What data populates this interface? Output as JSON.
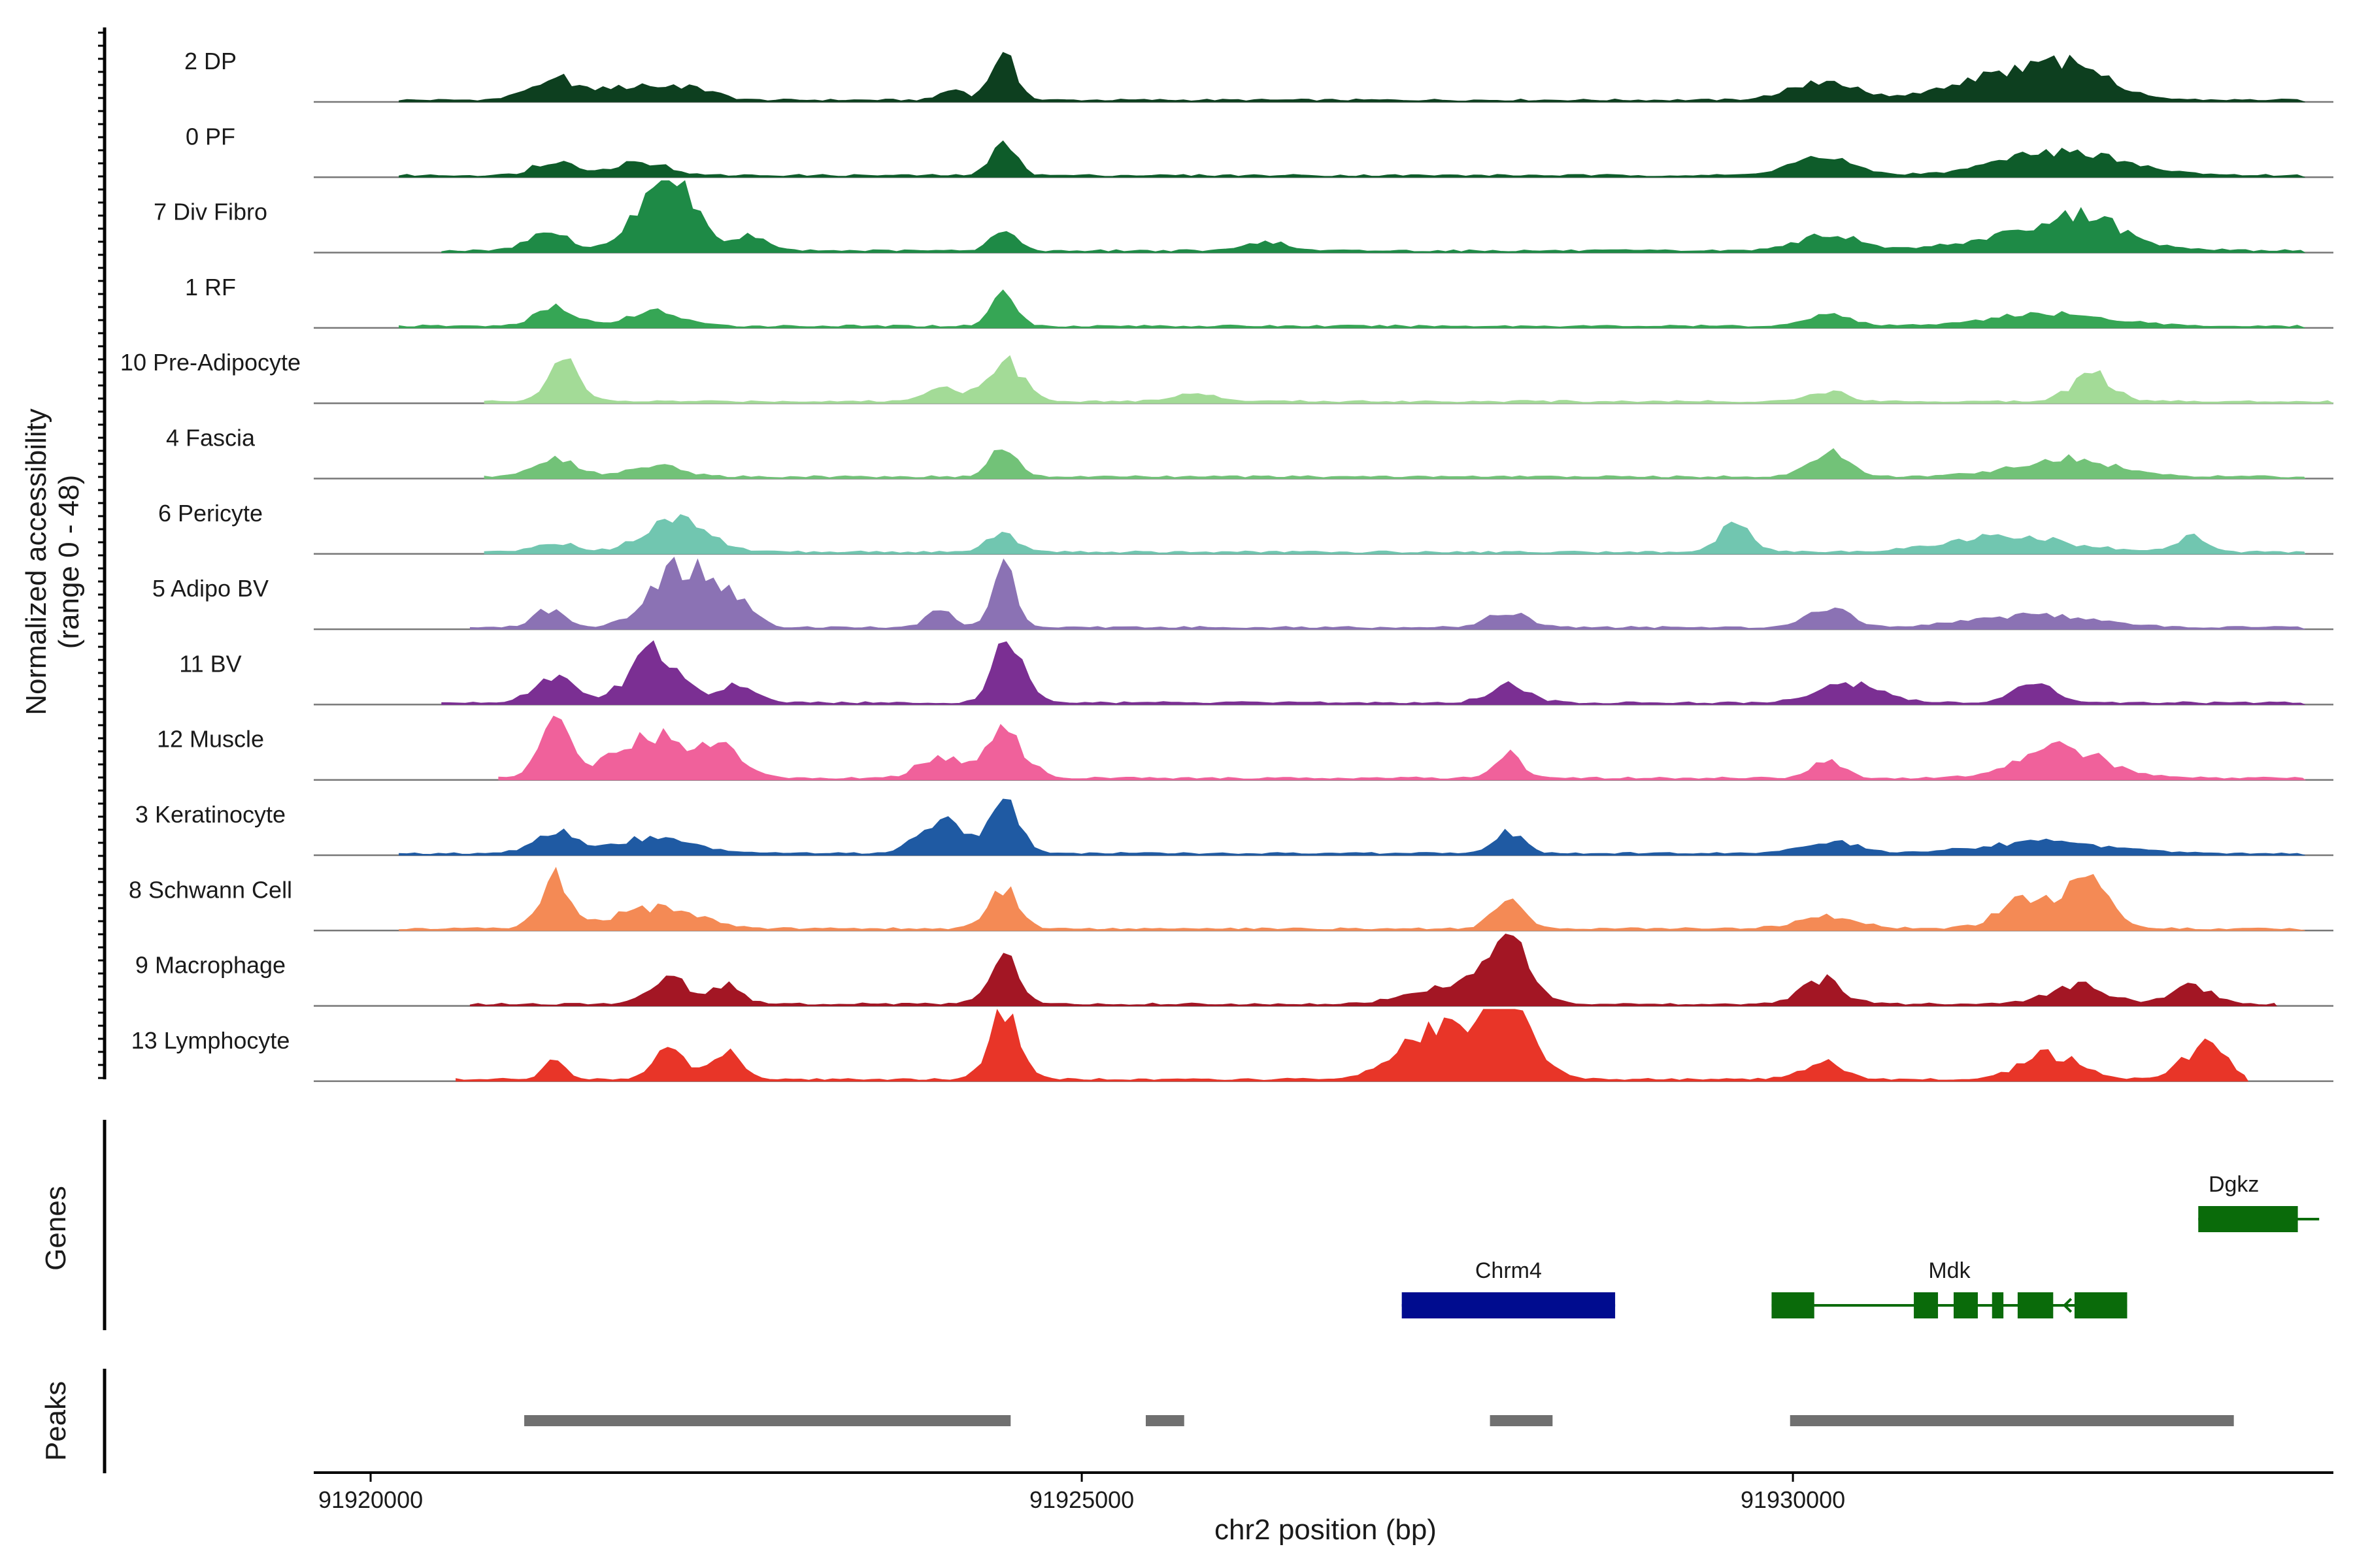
{
  "chart_data": {
    "type": "area",
    "xlabel": "chr2 position (bp)",
    "ylabel": "Normalized accessibility",
    "ylabel_range": "(range 0 - 48)",
    "ylim": [
      0,
      48
    ],
    "xlim": [
      91919600,
      91933800
    ],
    "x_ticks": [
      91920000,
      91925000,
      91930000
    ],
    "x_tick_labels": [
      "91920000",
      "91925000",
      "91930000"
    ],
    "genes_label": "Genes",
    "peaks_label": "Peaks",
    "grid": false,
    "tracks": [
      {
        "name": "2 DP",
        "color": "#0d3f1f",
        "start": 91920200,
        "end": 91933600,
        "peaks": [
          [
            91921300,
            14,
            250
          ],
          [
            91921900,
            10,
            300
          ],
          [
            91922300,
            7,
            200
          ],
          [
            91924100,
            8,
            120
          ],
          [
            91924450,
            30,
            120
          ],
          [
            91930200,
            13,
            300
          ],
          [
            91931600,
            18,
            600
          ],
          [
            91932000,
            12,
            300
          ]
        ]
      },
      {
        "name": "0 PF",
        "color": "#0e5c2a",
        "start": 91920200,
        "end": 91933600,
        "peaks": [
          [
            91921300,
            10,
            200
          ],
          [
            91921900,
            9,
            250
          ],
          [
            91924450,
            24,
            120
          ],
          [
            91930200,
            12,
            300
          ],
          [
            91931900,
            16,
            600
          ]
        ]
      },
      {
        "name": "7 Div Fibro",
        "color": "#1e8a46",
        "start": 91920500,
        "end": 91933600,
        "peaks": [
          [
            91921250,
            12,
            200
          ],
          [
            91921900,
            20,
            200
          ],
          [
            91922150,
            48,
            200
          ],
          [
            91922650,
            10,
            180
          ],
          [
            91924450,
            16,
            120
          ],
          [
            91926300,
            6,
            200
          ],
          [
            91930250,
            11,
            300
          ],
          [
            91931800,
            12,
            700
          ],
          [
            91932050,
            14,
            300
          ]
        ]
      },
      {
        "name": "1 RF",
        "color": "#36a655",
        "start": 91920200,
        "end": 91933600,
        "peaks": [
          [
            91921300,
            12,
            200
          ],
          [
            91922000,
            10,
            250
          ],
          [
            91924450,
            22,
            120
          ],
          [
            91930250,
            8,
            200
          ],
          [
            91931800,
            8,
            600
          ]
        ]
      },
      {
        "name": "10 Pre-Adipocyte",
        "color": "#a3db97",
        "start": 91920800,
        "end": 91933800,
        "peaks": [
          [
            91921350,
            30,
            150
          ],
          [
            91924000,
            10,
            150
          ],
          [
            91924450,
            28,
            180
          ],
          [
            91925800,
            6,
            200
          ],
          [
            91930250,
            6,
            200
          ],
          [
            91932100,
            18,
            200
          ]
        ]
      },
      {
        "name": "4 Fascia",
        "color": "#72c278",
        "start": 91920800,
        "end": 91933600,
        "peaks": [
          [
            91921300,
            12,
            200
          ],
          [
            91922000,
            8,
            250
          ],
          [
            91924450,
            22,
            120
          ],
          [
            91930250,
            16,
            200
          ],
          [
            91931900,
            12,
            500
          ]
        ]
      },
      {
        "name": "6 Pericyte",
        "color": "#71c6b0",
        "start": 91920800,
        "end": 91933600,
        "peaks": [
          [
            91921300,
            6,
            200
          ],
          [
            91922150,
            22,
            300
          ],
          [
            91924450,
            12,
            150
          ],
          [
            91929600,
            20,
            150
          ],
          [
            91931500,
            10,
            600
          ],
          [
            91932800,
            10,
            150
          ]
        ]
      },
      {
        "name": "5 Adipo BV",
        "color": "#8b72b4",
        "start": 91920700,
        "end": 91933600,
        "peaks": [
          [
            91921250,
            12,
            150
          ],
          [
            91922200,
            42,
            300
          ],
          [
            91922600,
            14,
            150
          ],
          [
            91924000,
            12,
            120
          ],
          [
            91924450,
            40,
            120
          ],
          [
            91928000,
            10,
            200
          ],
          [
            91930250,
            14,
            200
          ],
          [
            91931700,
            8,
            600
          ]
        ]
      },
      {
        "name": "11 BV",
        "color": "#7b2f93",
        "start": 91920500,
        "end": 91933600,
        "peaks": [
          [
            91921300,
            18,
            200
          ],
          [
            91922000,
            34,
            250
          ],
          [
            91922600,
            14,
            150
          ],
          [
            91924500,
            44,
            150
          ],
          [
            91928000,
            12,
            200
          ],
          [
            91930400,
            14,
            300
          ],
          [
            91931700,
            14,
            200
          ]
        ]
      },
      {
        "name": "12 Muscle",
        "color": "#f0619b",
        "start": 91920900,
        "end": 91933600,
        "peaks": [
          [
            91921300,
            38,
            150
          ],
          [
            91922000,
            28,
            400
          ],
          [
            91922500,
            14,
            200
          ],
          [
            91924000,
            14,
            200
          ],
          [
            91924450,
            30,
            200
          ],
          [
            91928000,
            18,
            120
          ],
          [
            91930250,
            12,
            150
          ],
          [
            91931900,
            20,
            400
          ]
        ]
      },
      {
        "name": "3 Keratinocyte",
        "color": "#1f5aa3",
        "start": 91920200,
        "end": 91933600,
        "peaks": [
          [
            91921300,
            14,
            200
          ],
          [
            91922000,
            10,
            400
          ],
          [
            91924000,
            24,
            200
          ],
          [
            91924450,
            36,
            150
          ],
          [
            91928000,
            14,
            150
          ],
          [
            91930250,
            8,
            300
          ],
          [
            91931800,
            8,
            600
          ]
        ]
      },
      {
        "name": "8 Schwann Cell",
        "color": "#f48a55",
        "start": 91920200,
        "end": 91933600,
        "peaks": [
          [
            91921300,
            34,
            150
          ],
          [
            91922000,
            14,
            400
          ],
          [
            91924450,
            28,
            150
          ],
          [
            91928000,
            18,
            150
          ],
          [
            91930250,
            8,
            300
          ],
          [
            91931700,
            22,
            300
          ],
          [
            91932100,
            26,
            200
          ]
        ]
      },
      {
        "name": "9 Macrophage",
        "color": "#a31624",
        "start": 91920700,
        "end": 91933400,
        "peaks": [
          [
            91922100,
            16,
            200
          ],
          [
            91922500,
            12,
            150
          ],
          [
            91924450,
            30,
            150
          ],
          [
            91927600,
            12,
            400
          ],
          [
            91928000,
            40,
            200
          ],
          [
            91930200,
            16,
            200
          ],
          [
            91932000,
            12,
            300
          ],
          [
            91932800,
            12,
            200
          ]
        ]
      },
      {
        "name": "13 Lymphocyte",
        "color": "#e83528",
        "start": 91920600,
        "end": 91933200,
        "peaks": [
          [
            91921300,
            14,
            100
          ],
          [
            91922100,
            24,
            150
          ],
          [
            91922500,
            18,
            150
          ],
          [
            91924450,
            42,
            150
          ],
          [
            91927500,
            34,
            350
          ],
          [
            91928000,
            48,
            250
          ],
          [
            91930200,
            12,
            200
          ],
          [
            91931800,
            16,
            300
          ],
          [
            91932900,
            24,
            200
          ]
        ]
      }
    ],
    "genes": [
      {
        "name": "Chrm4",
        "color": "#000c8f",
        "strand": "-",
        "start": 91927250,
        "end": 91928750,
        "exons": [
          [
            91927250,
            91928750
          ]
        ]
      },
      {
        "name": "Mdk",
        "color": "#0a6b0a",
        "strand": "-",
        "start": 91929850,
        "end": 91932350,
        "exons": [
          [
            91929850,
            91930150
          ],
          [
            91930850,
            91931020
          ],
          [
            91931130,
            91931300
          ],
          [
            91931400,
            91931480
          ],
          [
            91931580,
            91931830
          ],
          [
            91931980,
            91932350
          ]
        ]
      },
      {
        "name": "Dgkz",
        "color": "#0a6b0a",
        "strand": "+",
        "start": 91932850,
        "end": 91933700,
        "exons": [
          [
            91932850,
            91933550
          ]
        ]
      }
    ],
    "peak_regions": [
      [
        91921080,
        91924500
      ],
      [
        91925450,
        91925720
      ],
      [
        91927870,
        91928310
      ],
      [
        91929980,
        91933100
      ]
    ],
    "peak_color": "#707070"
  }
}
